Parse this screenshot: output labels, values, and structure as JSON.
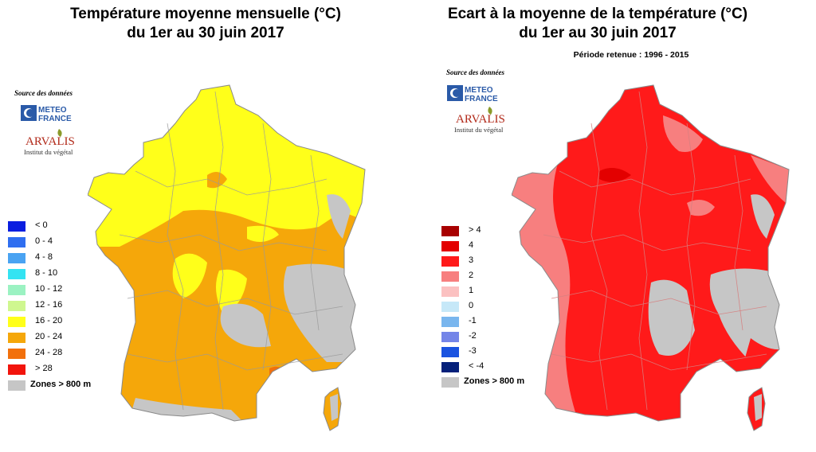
{
  "left": {
    "title_line1": "Température moyenne mensuelle (°C)",
    "title_line2": "du 1er au 30 juin 2017",
    "source_label": "Source des données",
    "logo_meteo_france": "METEO FRANCE",
    "logo_arvalis": "ARVALIS",
    "logo_arvalis_sub": "Institut du végétal",
    "legend": [
      {
        "label": "< 0",
        "color": "#0a1ee0"
      },
      {
        "label": "0 - 4",
        "color": "#2f6ef0"
      },
      {
        "label": "4 - 8",
        "color": "#4aa3f2"
      },
      {
        "label": "8 - 10",
        "color": "#33e3f2"
      },
      {
        "label": "10 - 12",
        "color": "#9bf2c2"
      },
      {
        "label": "12 - 16",
        "color": "#cff78f"
      },
      {
        "label": "16 - 20",
        "color": "#ffff1a"
      },
      {
        "label": "20 - 24",
        "color": "#f5a70a"
      },
      {
        "label": "24 - 28",
        "color": "#f2700c"
      },
      {
        "label": "> 28",
        "color": "#f2140c"
      },
      {
        "label": "Zones > 800 m",
        "color": "#c6c6c6"
      }
    ]
  },
  "right": {
    "title_line1": "Ecart à la moyenne de la température (°C)",
    "title_line2": "du 1er au 30 juin 2017",
    "period": "Période retenue : 1996 - 2015",
    "source_label": "Source des données",
    "logo_meteo_france": "METEO FRANCE",
    "logo_arvalis": "ARVALIS",
    "logo_arvalis_sub": "Institut du végétal",
    "legend": [
      {
        "label": "> 4",
        "color": "#a80000"
      },
      {
        "label": "4",
        "color": "#e30000"
      },
      {
        "label": "3",
        "color": "#ff1a1a"
      },
      {
        "label": "2",
        "color": "#f77f7f"
      },
      {
        "label": "1",
        "color": "#fbc1c1"
      },
      {
        "label": "0",
        "color": "#c6e8f8"
      },
      {
        "label": "-1",
        "color": "#79b6ee"
      },
      {
        "label": "-2",
        "color": "#7485e8"
      },
      {
        "label": "-3",
        "color": "#1a53e0"
      },
      {
        "label": "< -4",
        "color": "#04207a"
      },
      {
        "label": "Zones > 800 m",
        "color": "#c6c6c6"
      }
    ]
  }
}
